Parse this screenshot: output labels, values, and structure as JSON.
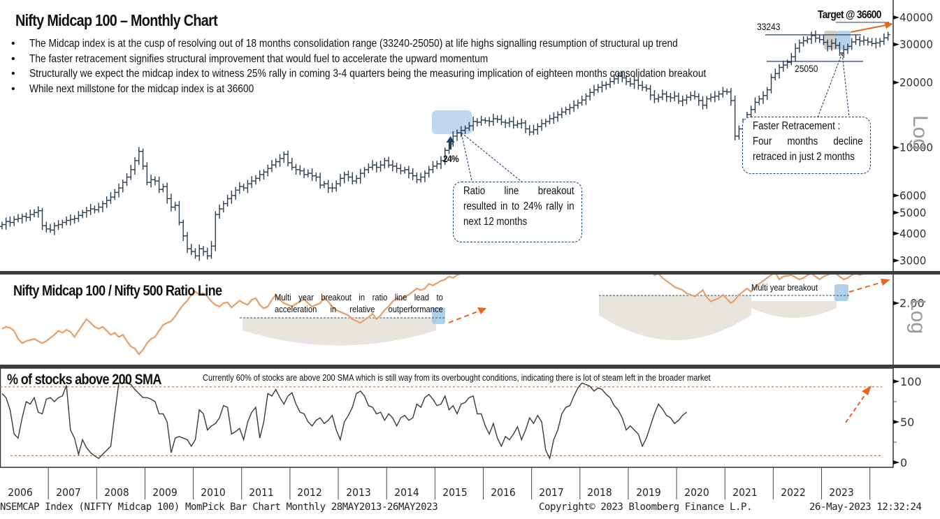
{
  "panel_price": {
    "title": "Nifty Midcap 100 – Monthly  Chart",
    "bullets": [
      "The Midcap index is at the cusp of resolving out of 18 months consolidation range (33240-25050) at life highs signalling resumption of structural up trend",
      "The faster retracement signifies structural improvement that would fuel to accelerate the upward momentum",
      "Structurally we expect the midcap index to witness 25% rally in coming 3-4 quarters being the measuring implication of eighteen months consolidation breakout",
      "While next millstone for the midcap index is  at 36600"
    ],
    "target_label": "Target @ 36600",
    "range_high_label": "33243",
    "range_low_label": "25050",
    "arrow_pct_label": "24%",
    "callout_ratio": "Ratio line breakout resulted in to 24% rally in next 12 months",
    "callout_retrace_title": "Faster Retracement :",
    "callout_retrace": "Four months decline retraced in just 2 months",
    "scale_label": "Log"
  },
  "panel_ratio": {
    "title": "Nifty Midcap 100 / Nifty 500 Ratio Line",
    "note_left": "Multi year breakout in ratio line lead to acceleration in relative outperformance",
    "note_right": "Multi year breakout",
    "scale_label": "Log"
  },
  "panel_breadth": {
    "title": "% of stocks above 200 SMA",
    "note": "Currently 60% of stocks are above 200 SMA which is still way from its overbought conditions, indicating there is lot of steam left in the broader market"
  },
  "footer": {
    "left": "NSEMCAP Index (NIFTY Midcap 100) MomPick Bar Chart  Monthly 28MAY2013-26MAY2023",
    "center": "Copyright© 2023 Bloomberg Finance L.P.",
    "right": "26-May-2023 12:32:24"
  },
  "colors": {
    "bar": "#2b3d4f",
    "ratio_line": "#d9894e",
    "breadth_line": "#3a3a3a",
    "accent_orange": "#e8661c",
    "highlight_blue": "#a9c9e8",
    "base_shade": "#e4e2d8",
    "callout_border": "#1f3f6b"
  },
  "chart_data": [
    {
      "type": "bar",
      "title": "Nifty Midcap 100 – Monthly  Chart",
      "scale": "log",
      "ylim": [
        2700,
        44000
      ],
      "yticks": [
        3000,
        4000,
        5000,
        6000,
        10000,
        20000,
        30000,
        40000
      ],
      "ytick_labels": [
        "3000",
        "4000",
        "5000",
        "6000",
        "10000",
        "20000",
        "30000",
        "40000"
      ],
      "x_start": 2006.0,
      "x_end": 2023.42,
      "x_ticks": [
        "2006",
        "2007",
        "2008",
        "2009",
        "2010",
        "2011",
        "2012",
        "2013",
        "2014",
        "2015",
        "2016",
        "2017",
        "2018",
        "2019",
        "2020",
        "2021",
        "2022",
        "2023"
      ],
      "range_high": 33243,
      "range_low": 25050,
      "target": 36600,
      "monthly_close": [
        4400,
        4550,
        4500,
        4650,
        4700,
        4800,
        4750,
        4900,
        5000,
        5100,
        4350,
        4200,
        4150,
        4350,
        4400,
        4500,
        4600,
        4650,
        4700,
        4850,
        5000,
        5100,
        5200,
        5150,
        5300,
        5500,
        5700,
        5900,
        6200,
        6500,
        6900,
        7300,
        7900,
        8700,
        9600,
        8200,
        6900,
        7100,
        7000,
        6400,
        6600,
        5800,
        5300,
        5400,
        4500,
        3900,
        3400,
        3300,
        3150,
        3400,
        3300,
        3150,
        3500,
        4900,
        5200,
        5500,
        5800,
        6000,
        6350,
        6600,
        6500,
        6800,
        7000,
        7200,
        7500,
        7700,
        8000,
        8300,
        8600,
        8900,
        9300,
        8500,
        8100,
        7900,
        7800,
        7500,
        7600,
        7400,
        7300,
        6700,
        6800,
        6500,
        6500,
        6800,
        7200,
        7500,
        7300,
        7000,
        7200,
        7600,
        7900,
        8100,
        8300,
        8100,
        8300,
        8700,
        8300,
        8200,
        8000,
        7800,
        7900,
        7600,
        7400,
        7100,
        7300,
        7600,
        7900,
        8200,
        8400,
        8700,
        9700,
        10400,
        11300,
        11700,
        12000,
        12300,
        12600,
        13200,
        13100,
        13400,
        13300,
        13200,
        13600,
        13500,
        13100,
        13000,
        13200,
        12700,
        12900,
        13000,
        12200,
        11800,
        12100,
        12500,
        12900,
        13200,
        13600,
        13800,
        14200,
        14600,
        15000,
        15300,
        15700,
        16100,
        16600,
        17300,
        18000,
        18500,
        19000,
        19400,
        19600,
        20200,
        20800,
        21400,
        21000,
        20200,
        19700,
        20500,
        19400,
        19000,
        18700,
        17500,
        16800,
        17100,
        17700,
        17200,
        17000,
        17300,
        16400,
        16600,
        17100,
        17400,
        17200,
        16500,
        15700,
        16800,
        17100,
        17300,
        17700,
        18200,
        18100,
        16500,
        11300,
        12200,
        13000,
        14200,
        15000,
        16200,
        16800,
        17400,
        18500,
        21100,
        22000,
        23500,
        24100,
        24800,
        26300,
        28800,
        30500,
        31200,
        31800,
        33000,
        32100,
        31600,
        30700,
        29400,
        30400,
        29700,
        27400,
        28400,
        29400,
        30800,
        31600,
        31100,
        31400,
        30800,
        30300,
        30500,
        31000,
        32200,
        33300
      ]
    },
    {
      "type": "line",
      "title": "Nifty Midcap 100 / Nifty 500 Ratio Line",
      "scale": "log",
      "ytick": 2.0,
      "ytick_label": "2.00",
      "x_start": 2006.0,
      "x_end": 2023.42,
      "breakout_level_1": 2.18,
      "breakout_level_2": 2.18,
      "values": [
        1.72,
        1.74,
        1.73,
        1.7,
        1.62,
        1.58,
        1.6,
        1.61,
        1.62,
        1.6,
        1.58,
        1.6,
        1.63,
        1.66,
        1.7,
        1.68,
        1.71,
        1.69,
        1.64,
        1.7,
        1.76,
        1.82,
        1.78,
        1.74,
        1.72,
        1.74,
        1.7,
        1.66,
        1.68,
        1.64,
        1.66,
        1.6,
        1.55,
        1.53,
        1.48,
        1.52,
        1.58,
        1.62,
        1.64,
        1.7,
        1.76,
        1.78,
        1.8,
        1.85,
        1.92,
        1.98,
        2.03,
        2.1,
        2.14,
        2.1,
        2.12,
        2.08,
        2.02,
        1.98,
        1.96,
        2.0,
        2.01,
        1.95,
        1.99,
        2.03,
        2.0,
        1.98,
        2.04,
        2.06,
        1.98,
        1.94,
        1.96,
        2.04,
        2.1,
        2.04,
        2.0,
        1.98,
        1.96,
        1.99,
        2.02,
        2.05,
        2.0,
        1.96,
        1.98,
        2.0,
        2.07,
        2.02,
        1.96,
        1.92,
        1.9,
        1.88,
        1.86,
        1.82,
        1.8,
        1.78,
        1.81,
        1.84,
        1.88,
        1.82,
        1.86,
        1.92,
        1.96,
        2.02,
        2.06,
        2.04,
        2.08,
        2.1,
        2.14,
        2.18,
        2.16,
        2.18,
        2.24,
        2.22,
        2.25,
        2.28,
        2.3,
        2.34,
        2.32,
        2.36,
        2.38,
        2.4,
        2.44,
        2.43,
        2.46,
        2.5,
        2.48,
        2.52,
        2.56,
        2.54,
        2.6,
        2.58,
        2.62,
        2.58,
        2.62,
        2.68,
        2.64,
        2.6,
        2.58,
        2.62,
        2.66,
        2.62,
        2.6,
        2.63,
        2.58,
        2.56,
        2.58,
        2.62,
        2.64,
        2.66,
        2.68,
        2.72,
        2.7,
        2.66,
        2.7,
        2.74,
        2.76,
        2.7,
        2.76,
        2.8,
        2.74,
        2.7,
        2.66,
        2.64,
        2.58,
        2.52,
        2.48,
        2.42,
        2.36,
        2.38,
        2.32,
        2.28,
        2.24,
        2.2,
        2.18,
        2.16,
        2.12,
        2.1,
        2.08,
        2.12,
        2.16,
        2.07,
        2.02,
        2.04,
        2.06,
        2.1,
        2.05,
        2.0,
        2.04,
        2.1,
        2.14,
        2.18,
        2.14,
        2.2,
        2.24,
        2.28,
        2.32,
        2.36,
        2.4,
        2.3,
        2.34,
        2.35,
        2.36,
        2.33,
        2.3,
        2.32,
        2.36,
        2.38,
        2.34,
        2.3,
        2.34,
        2.36,
        2.4,
        2.38,
        2.34,
        2.3,
        2.32,
        2.36,
        2.38,
        2.36,
        2.38,
        2.4,
        2.4,
        2.39,
        2.42,
        2.46,
        2.5
      ]
    },
    {
      "type": "line",
      "title": "% of stocks above 200 SMA",
      "ylim": [
        0,
        100
      ],
      "yticks": [
        0,
        50,
        100
      ],
      "ytick_labels": [
        "0",
        "50",
        "100"
      ],
      "overbought_level": 95,
      "oversold_level": 10,
      "x_start": 2006.0,
      "x_end": 2023.42,
      "values": [
        85,
        80,
        65,
        35,
        30,
        55,
        75,
        72,
        80,
        62,
        60,
        78,
        80,
        75,
        80,
        82,
        95,
        40,
        30,
        10,
        28,
        18,
        12,
        8,
        5,
        10,
        15,
        20,
        60,
        98,
        98,
        98,
        96,
        90,
        85,
        80,
        80,
        78,
        75,
        60,
        60,
        50,
        12,
        30,
        32,
        30,
        28,
        20,
        28,
        65,
        60,
        40,
        45,
        48,
        55,
        70,
        68,
        35,
        38,
        42,
        28,
        50,
        62,
        68,
        30,
        50,
        85,
        82,
        90,
        80,
        72,
        82,
        86,
        72,
        62,
        60,
        50,
        45,
        52,
        55,
        48,
        52,
        58,
        40,
        28,
        50,
        58,
        68,
        85,
        88,
        82,
        70,
        68,
        60,
        62,
        52,
        60,
        55,
        45,
        55,
        58,
        52,
        55,
        72,
        68,
        80,
        84,
        78,
        70,
        72,
        82,
        65,
        70,
        60,
        72,
        74,
        80,
        82,
        60,
        60,
        45,
        35,
        48,
        30,
        20,
        32,
        28,
        35,
        44,
        28,
        40,
        55,
        48,
        58,
        50,
        15,
        5,
        28,
        40,
        60,
        68,
        70,
        82,
        92,
        98,
        96,
        94,
        88,
        92,
        90,
        84,
        80,
        70,
        65,
        55,
        40,
        45,
        40,
        35,
        20,
        30,
        45,
        60,
        72,
        66,
        58,
        55,
        48,
        52,
        58,
        62
      ]
    }
  ]
}
